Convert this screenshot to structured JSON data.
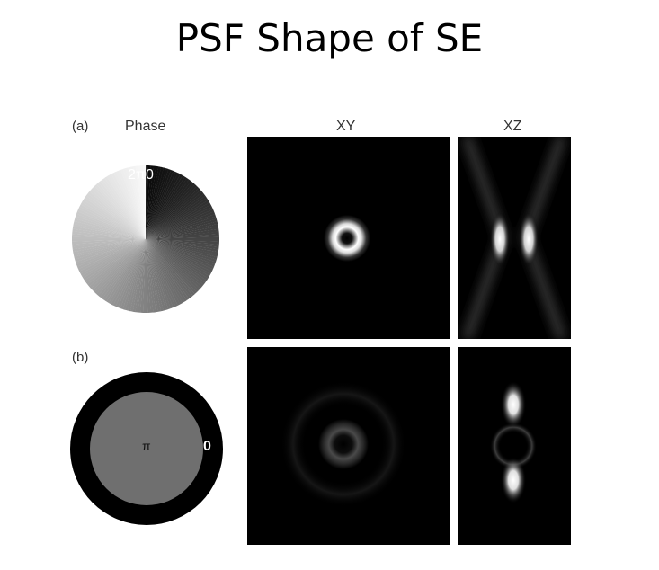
{
  "slide": {
    "title": "PSF Shape of SE"
  },
  "figure": {
    "label_a": "(a)",
    "label_b": "(b)",
    "phase_label": "Phase",
    "col_xy": "XY",
    "col_xz": "XZ",
    "vortex_mark": "2π0",
    "step_inner": "π",
    "step_outer": "0"
  }
}
